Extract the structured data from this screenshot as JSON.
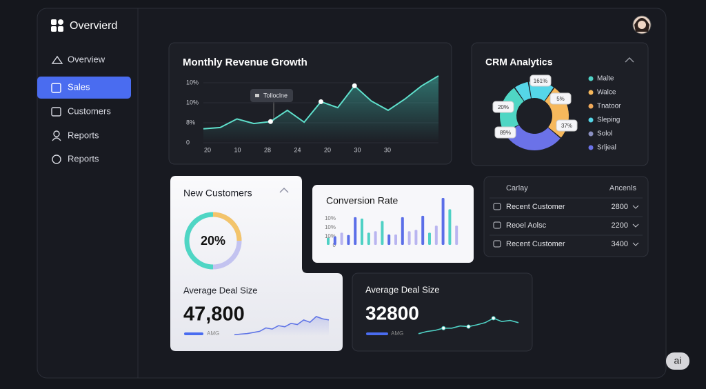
{
  "brand": "Overvierd",
  "nav": [
    "Overview",
    "Sales",
    "Customers",
    "Reports",
    "Reports"
  ],
  "revenue": {
    "title": "Monthly Revenue Growth",
    "tooltip": "Tolloclne",
    "y_labels": [
      "10%",
      "10%",
      "8%",
      "0"
    ],
    "x_labels": [
      "20",
      "10",
      "28",
      "24",
      "20",
      "30",
      "30"
    ],
    "ylim": [
      0,
      100
    ],
    "values": [
      20,
      22,
      35,
      28,
      31,
      48,
      30,
      61,
      52,
      85,
      62,
      48,
      65,
      85,
      100
    ]
  },
  "crm": {
    "title": "CRM Analytics",
    "segment_labels": [
      "161%",
      "5%",
      "37%",
      "89%",
      "20%"
    ],
    "legend": [
      {
        "name": "Malte",
        "color": "#4fd1c5"
      },
      {
        "name": "Walce",
        "color": "#f6b85c"
      },
      {
        "name": "Tnatoor",
        "color": "#f0a95a"
      },
      {
        "name": "Sleping",
        "color": "#55d6e8"
      },
      {
        "name": "Solol",
        "color": "#8a8fc0"
      },
      {
        "name": "Srljeal",
        "color": "#6b72e8"
      }
    ]
  },
  "new_customers": {
    "title": "New Customers",
    "value": "20%"
  },
  "avg_deal_1": {
    "title": "Average Deal Size",
    "value": "47,800",
    "caption": "AMG",
    "ylim": [
      0,
      100
    ],
    "trend": [
      5,
      8,
      10,
      15,
      20,
      35,
      30,
      45,
      40,
      55,
      50,
      70,
      60,
      85,
      75,
      70
    ]
  },
  "conversion": {
    "title": "Conversion Rate",
    "y_labels": [
      "10%",
      "10%",
      "10%",
      "0"
    ],
    "ylim": [
      0,
      100
    ],
    "values": [
      15,
      18,
      26,
      21,
      59,
      56,
      26,
      29,
      51,
      22,
      22,
      59,
      29,
      32,
      62,
      26,
      41,
      100,
      76,
      41
    ],
    "colors": [
      "#4fd1c5",
      "#5b6ee8",
      "#b9b5f0",
      "#5b6ee8",
      "#5b6ee8",
      "#4fd1c5",
      "#4fd1c5",
      "#b9b5f0",
      "#4fd1c5",
      "#5b6ee8",
      "#b9b5f0",
      "#5b6ee8",
      "#b9b5f0",
      "#b9b5f0",
      "#5b6ee8",
      "#4fd1c5",
      "#b9b5f0",
      "#5b6ee8",
      "#4fd1c5",
      "#b9b5f0"
    ]
  },
  "table": {
    "header": [
      "Carlay",
      "Ancenls"
    ],
    "rows": [
      [
        "Recent Customer",
        "2800"
      ],
      [
        "Reoel Aolsc",
        "2200"
      ],
      [
        "Recent Customer",
        "3400"
      ]
    ]
  },
  "avg_deal_2": {
    "title": "Average Deal Size",
    "value": "32800",
    "caption": "AMG",
    "ylim": [
      0,
      100
    ],
    "trend": [
      10,
      20,
      25,
      35,
      35,
      45,
      42,
      50,
      60,
      80,
      65,
      70,
      60
    ]
  },
  "badge": "ai"
}
